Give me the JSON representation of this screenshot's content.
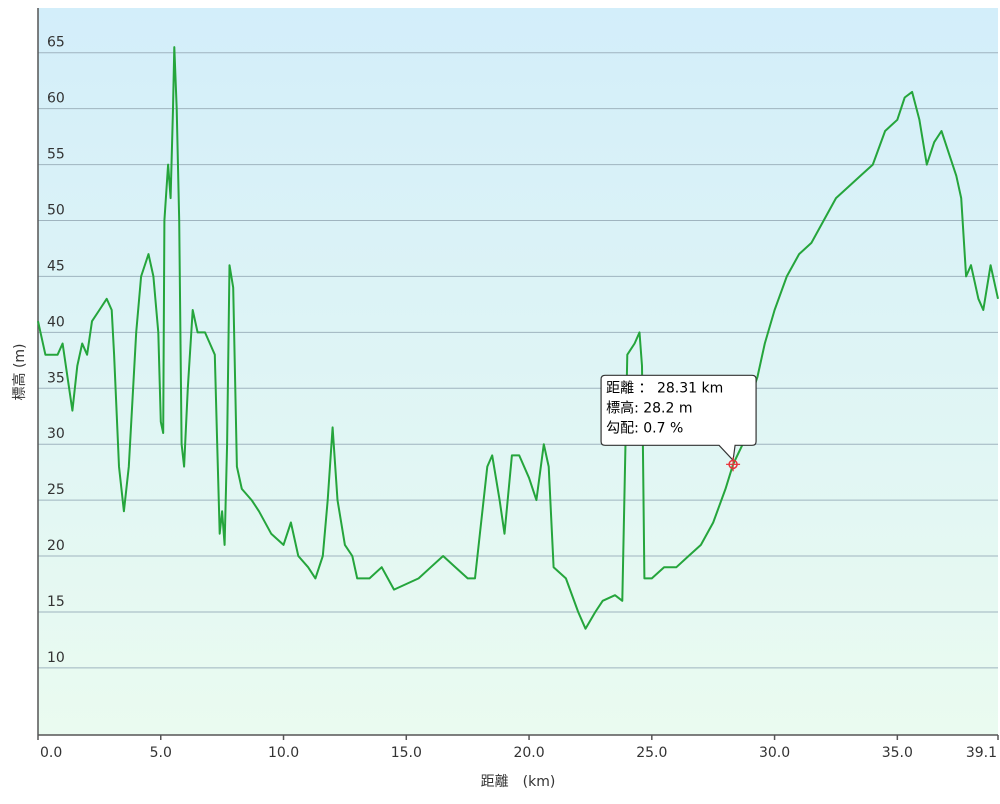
{
  "chart_data": {
    "type": "line",
    "x_label": "距離　(km)",
    "y_label": "標高 (m)",
    "xlim": [
      0,
      39.1
    ],
    "ylim": [
      4,
      69
    ],
    "xticks": [
      {
        "value": 0,
        "label": "0.0"
      },
      {
        "value": 5,
        "label": "5.0"
      },
      {
        "value": 10,
        "label": "10.0"
      },
      {
        "value": 15,
        "label": "15.0"
      },
      {
        "value": 20,
        "label": "20.0"
      },
      {
        "value": 25,
        "label": "25.0"
      },
      {
        "value": 30,
        "label": "30.0"
      },
      {
        "value": 35,
        "label": "35.0"
      },
      39.1
    ],
    "yticks": [
      10,
      15,
      20,
      25,
      30,
      35,
      40,
      45,
      50,
      55,
      60,
      65
    ],
    "grid": true,
    "x": [
      0.0,
      0.3,
      0.8,
      1.0,
      1.2,
      1.4,
      1.6,
      1.8,
      2.0,
      2.2,
      2.5,
      2.8,
      3.0,
      3.1,
      3.3,
      3.5,
      3.7,
      4.0,
      4.2,
      4.5,
      4.7,
      4.9,
      5.0,
      5.1,
      5.15,
      5.3,
      5.4,
      5.5,
      5.55,
      5.65,
      5.75,
      5.85,
      5.95,
      6.1,
      6.3,
      6.5,
      6.8,
      7.0,
      7.2,
      7.3,
      7.4,
      7.5,
      7.6,
      7.7,
      7.8,
      7.95,
      8.1,
      8.3,
      8.7,
      9.0,
      9.5,
      10.0,
      10.3,
      10.6,
      11.0,
      11.3,
      11.6,
      11.8,
      12.0,
      12.2,
      12.5,
      12.8,
      13.0,
      13.5,
      14.0,
      14.5,
      15.0,
      15.5,
      16.0,
      16.5,
      17.0,
      17.5,
      17.8,
      18.0,
      18.3,
      18.5,
      18.8,
      19.0,
      19.3,
      19.6,
      20.0,
      20.3,
      20.6,
      20.8,
      21.0,
      21.5,
      22.0,
      22.3,
      22.7,
      23.0,
      23.5,
      23.8,
      24.0,
      24.3,
      24.5,
      24.6,
      24.7,
      25.0,
      25.5,
      26.0,
      26.5,
      27.0,
      27.5,
      28.0,
      28.31,
      28.7,
      29.0,
      29.3,
      29.6,
      30.0,
      30.5,
      31.0,
      31.5,
      32.0,
      32.5,
      33.0,
      33.5,
      34.0,
      34.5,
      35.0,
      35.3,
      35.6,
      35.9,
      36.2,
      36.5,
      36.8,
      37.1,
      37.4,
      37.6,
      37.8,
      38.0,
      38.3,
      38.5,
      38.8,
      39.1
    ],
    "series": [
      {
        "color": "#25a53c",
        "values": [
          41,
          38,
          38,
          39,
          36,
          33,
          37,
          39,
          38,
          41,
          42,
          43,
          42,
          38,
          28,
          24,
          28,
          40,
          45,
          47,
          45,
          40,
          32,
          31,
          50,
          55,
          52,
          60,
          65.5,
          60,
          50,
          30,
          28,
          35,
          42,
          40,
          40,
          39,
          38,
          30,
          22,
          24,
          21,
          30,
          46,
          44,
          28,
          26,
          25,
          24,
          22,
          21,
          23,
          20,
          19,
          18,
          20,
          25,
          31.5,
          25,
          21,
          20,
          18,
          18,
          19,
          17,
          17.5,
          18,
          19,
          20,
          19,
          18,
          18,
          22,
          28,
          29,
          25,
          22,
          29,
          29,
          27,
          25,
          30,
          28,
          19,
          18,
          15,
          13.5,
          15,
          16,
          16.5,
          16,
          38,
          39,
          40,
          37,
          18,
          18,
          19,
          19,
          20,
          21,
          23,
          26,
          28.2,
          30,
          34,
          36,
          39,
          42,
          45,
          47,
          48,
          50,
          52,
          53,
          54,
          55,
          58,
          59,
          61,
          61.5,
          59,
          55,
          57,
          58,
          56,
          54,
          52,
          45,
          46,
          43,
          42,
          46,
          43
        ]
      }
    ],
    "marker": {
      "x": 28.31,
      "y": 28.2,
      "color": "#e8333a",
      "label_lines": [
        "距離 ： 28.31 km",
        "標高: 28.2 m",
        "勾配: 0.7 %"
      ]
    }
  }
}
